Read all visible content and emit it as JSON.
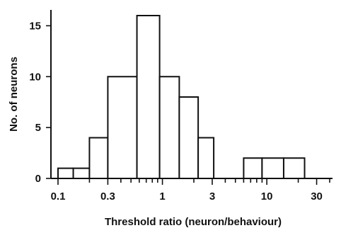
{
  "chart_data": {
    "type": "bar",
    "title": "",
    "xlabel": "Threshold ratio (neuron/behaviour)",
    "ylabel": "No. of neurons",
    "x_scale": "log",
    "xlim": [
      0.1,
      40
    ],
    "ylim": [
      0,
      16
    ],
    "grid": false,
    "bins": [
      {
        "x0": 0.1,
        "x1": 0.14,
        "count": 1
      },
      {
        "x0": 0.14,
        "x1": 0.2,
        "count": 1
      },
      {
        "x0": 0.2,
        "x1": 0.3,
        "count": 4
      },
      {
        "x0": 0.3,
        "x1": 0.57,
        "count": 10
      },
      {
        "x0": 0.57,
        "x1": 0.94,
        "count": 16
      },
      {
        "x0": 0.94,
        "x1": 1.45,
        "count": 10
      },
      {
        "x0": 1.45,
        "x1": 2.2,
        "count": 8
      },
      {
        "x0": 2.2,
        "x1": 3.1,
        "count": 4
      },
      {
        "x0": 6.0,
        "x1": 9.0,
        "count": 2
      },
      {
        "x0": 9.0,
        "x1": 14.5,
        "count": 2
      },
      {
        "x0": 14.5,
        "x1": 23.0,
        "count": 2
      }
    ],
    "y_ticks": [
      {
        "value": 0,
        "label": "0"
      },
      {
        "value": 5,
        "label": "5"
      },
      {
        "value": 10,
        "label": "10"
      },
      {
        "value": 15,
        "label": "15"
      }
    ],
    "x_tick_labels": [
      {
        "value": 0.1,
        "label": "0.1"
      },
      {
        "value": 0.3,
        "label": "0.3"
      },
      {
        "value": 1,
        "label": "1"
      },
      {
        "value": 3,
        "label": "3"
      },
      {
        "value": 10,
        "label": "10"
      },
      {
        "value": 30,
        "label": "30"
      }
    ],
    "x_minor_ticks": [
      0.1,
      0.2,
      0.3,
      0.4,
      0.5,
      0.6,
      0.7,
      0.8,
      0.9,
      1,
      2,
      3,
      4,
      5,
      6,
      7,
      8,
      9,
      10,
      20,
      30,
      40
    ]
  }
}
